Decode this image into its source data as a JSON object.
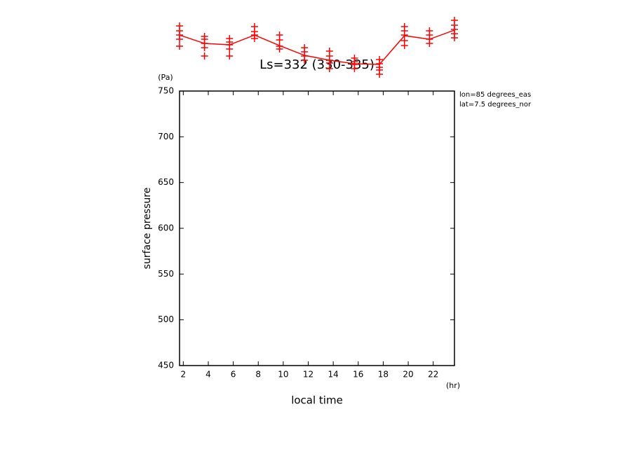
{
  "chart_data": {
    "type": "line",
    "title": "Ls=332 (330-335)",
    "y_unit": "(Pa)",
    "x_unit": "(hr)",
    "ylabel": "surface pressure",
    "xlabel": "local time",
    "annotations": [
      "lon=85 degrees_eas",
      "lat=7.5 degrees_nor"
    ],
    "color": "#ff0000",
    "x": [
      1.7,
      3.7,
      5.7,
      7.7,
      9.7,
      11.7,
      13.7,
      15.7,
      17.7,
      19.7,
      21.7,
      23.7
    ],
    "values": [
      811.2,
      802.0,
      800.5,
      811.2,
      799.7,
      789.0,
      783.7,
      779.8,
      779.1,
      810.5,
      806.6,
      816.6
    ],
    "markers": {
      "x": [
        1.7,
        1.7,
        1.7,
        1.7,
        1.7,
        3.7,
        3.7,
        3.7,
        3.7,
        3.7,
        5.7,
        5.7,
        5.7,
        5.7,
        5.7,
        7.7,
        7.7,
        7.7,
        7.7,
        9.7,
        9.7,
        9.7,
        9.7,
        11.7,
        11.7,
        11.7,
        11.7,
        13.7,
        13.7,
        13.7,
        13.7,
        13.7,
        15.7,
        15.7,
        15.7,
        15.7,
        17.7,
        17.7,
        17.7,
        17.7,
        17.7,
        19.7,
        19.7,
        19.7,
        19.7,
        19.7,
        21.7,
        21.7,
        21.7,
        21.7,
        23.7,
        23.7,
        23.7,
        23.7,
        23.7
      ],
      "y": [
        821.2,
        815.8,
        811.2,
        806.6,
        799.0,
        809.7,
        806.6,
        802.0,
        797.4,
        788.3,
        807.4,
        803.6,
        800.5,
        795.9,
        788.3,
        820.4,
        815.0,
        811.2,
        807.4,
        811.2,
        805.9,
        799.0,
        795.9,
        797.4,
        792.9,
        788.3,
        783.7,
        793.6,
        788.3,
        783.7,
        780.6,
        774.5,
        786.0,
        782.1,
        779.1,
        774.5,
        784.4,
        779.8,
        775.9,
        773.0,
        768.4,
        820.4,
        815.8,
        811.2,
        805.1,
        799.7,
        815.8,
        811.2,
        806.6,
        802.0,
        827.3,
        821.9,
        817.3,
        812.7,
        808.2
      ]
    },
    "xlim": [
      1.7,
      23.7
    ],
    "xticks": [
      2,
      4,
      6,
      8,
      10,
      12,
      14,
      16,
      18,
      20,
      22
    ],
    "ylim": [
      450,
      750
    ],
    "yticks": [
      450,
      500,
      550,
      600,
      650,
      700,
      750
    ]
  }
}
